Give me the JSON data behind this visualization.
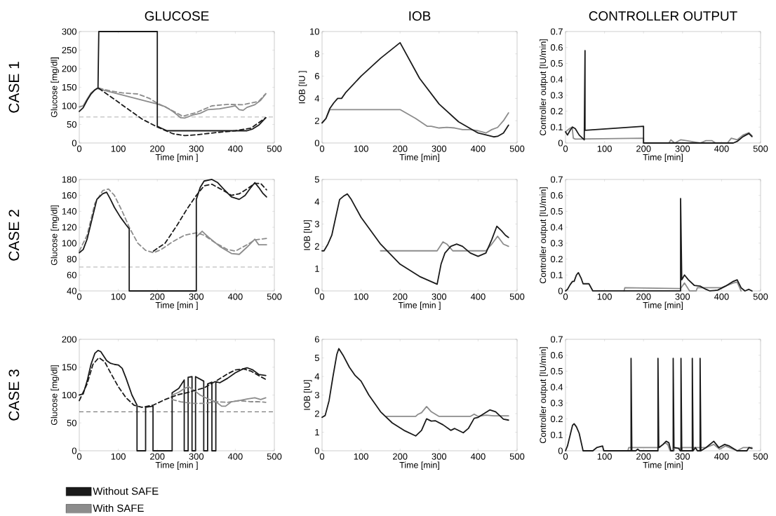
{
  "chart_data": [
    {
      "type": "line",
      "title": "GLUCOSE",
      "annotations": [
        "CASE 1"
      ],
      "xlabel": "Time [min ]",
      "ylabel": "Glucose [mg/dl]",
      "xlim": [
        0,
        500
      ],
      "xticks": [
        0,
        100,
        200,
        300,
        400,
        500
      ],
      "ylim": [
        0,
        300
      ],
      "yticks": [
        0,
        50,
        100,
        150,
        200,
        250,
        300
      ],
      "ref_lines": [
        {
          "axis": "y",
          "value": 70,
          "color": "#8c8c8c",
          "line_style": "dashed"
        }
      ],
      "series": [
        {
          "color": "#8c8c8c",
          "line_style": "solid",
          "x": [
            0,
            10,
            20,
            30,
            45,
            200,
            220,
            240,
            260,
            270,
            290,
            310,
            330,
            360,
            390,
            400,
            410,
            420,
            430,
            450,
            465,
            478
          ],
          "values": [
            97,
            100,
            118,
            135,
            147,
            105,
            98,
            85,
            68,
            67,
            75,
            80,
            90,
            92,
            98,
            100,
            90,
            88,
            96,
            103,
            115,
            132
          ]
        },
        {
          "color": "#8c8c8c",
          "line_style": "dashed",
          "x": [
            50,
            80,
            110,
            150,
            180,
            200,
            230,
            265,
            300,
            340,
            380,
            420,
            460,
            478
          ],
          "values": [
            148,
            140,
            135,
            132,
            120,
            107,
            92,
            72,
            82,
            100,
            104,
            103,
            112,
            133
          ]
        },
        {
          "color": "#1a1a1a",
          "line_style": "dashed",
          "x": [
            50,
            80,
            120,
            160,
            200,
            240,
            270,
            300,
            350,
            400,
            440,
            478
          ],
          "values": [
            147,
            125,
            95,
            65,
            43,
            25,
            20,
            22,
            28,
            33,
            40,
            68
          ]
        },
        {
          "color": "#1a1a1a",
          "line_style": "solid",
          "x": [
            0,
            10,
            20,
            30,
            40,
            48,
            50,
            200,
            200,
            210,
            225,
            300,
            400,
            430,
            445,
            460,
            478
          ],
          "values": [
            85,
            95,
            115,
            132,
            143,
            148,
            300,
            300,
            45,
            40,
            33,
            33,
            33,
            33,
            38,
            48,
            68
          ]
        }
      ]
    },
    {
      "type": "line",
      "title": "IOB",
      "xlabel": "Time [min]",
      "ylabel": "IOB [IU ]",
      "xlim": [
        0,
        500
      ],
      "xticks": [
        0,
        100,
        200,
        300,
        400,
        500
      ],
      "ylim": [
        0,
        10
      ],
      "yticks": [
        0,
        2,
        4,
        6,
        8,
        10
      ],
      "series": [
        {
          "color": "#8c8c8c",
          "line_style": "solid",
          "x": [
            0,
            10,
            20,
            200,
            240,
            270,
            280,
            300,
            320,
            340,
            360,
            380,
            400,
            420,
            435,
            450,
            465,
            478
          ],
          "values": [
            1.8,
            2.2,
            3,
            3,
            2.2,
            1.5,
            1.5,
            1.35,
            1.4,
            1.35,
            1.2,
            1.2,
            1.1,
            0.9,
            1.2,
            1.4,
            2,
            2.7
          ]
        },
        {
          "color": "#1a1a1a",
          "line_style": "solid",
          "x": [
            0,
            10,
            20,
            30,
            40,
            50,
            60,
            100,
            150,
            200,
            250,
            300,
            350,
            400,
            440,
            450,
            465,
            478
          ],
          "values": [
            1.8,
            2.2,
            3.1,
            3.6,
            4,
            4,
            4.5,
            6,
            7.6,
            9,
            5.8,
            3.5,
            1.9,
            0.9,
            0.55,
            0.6,
            0.9,
            1.6
          ]
        }
      ]
    },
    {
      "type": "line",
      "title": "CONTROLLER OUTPUT",
      "xlabel": "Time [min]",
      "ylabel": "Controller output [IU/min]",
      "xlim": [
        0,
        500
      ],
      "xticks": [
        0,
        100,
        200,
        300,
        400,
        500
      ],
      "ylim": [
        0,
        0.7
      ],
      "yticks": [
        0,
        0.1,
        0.2,
        0.3,
        0.4,
        0.5,
        0.6,
        0.7
      ],
      "series": [
        {
          "color": "#8c8c8c",
          "line_style": "solid",
          "x": [
            0,
            10,
            17,
            20,
            25,
            200,
            200,
            265,
            270,
            280,
            295,
            310,
            345,
            360,
            375,
            385,
            415,
            425,
            440,
            455,
            470,
            478
          ],
          "values": [
            0.07,
            0.09,
            0.1,
            0.03,
            0.025,
            0.03,
            0,
            0,
            0.02,
            0,
            0.02,
            0.015,
            0,
            0.015,
            0.015,
            0,
            0,
            0.03,
            0.02,
            0.05,
            0.065,
            0.045
          ]
        },
        {
          "color": "#1a1a1a",
          "line_style": "solid",
          "x": [
            0,
            5,
            12,
            18,
            25,
            35,
            48,
            50,
            50,
            200,
            200,
            430,
            440,
            455,
            470,
            478
          ],
          "values": [
            0.07,
            0.05,
            0.08,
            0.1,
            0.09,
            0.05,
            0.02,
            0.58,
            0.08,
            0.105,
            0,
            0,
            0.01,
            0.04,
            0.06,
            0.04
          ]
        }
      ]
    },
    {
      "type": "line",
      "annotations": [
        "CASE 2"
      ],
      "xlabel": "Time [min ]",
      "ylabel": "Glucose [mg/dl]",
      "xlim": [
        0,
        500
      ],
      "xticks": [
        0,
        100,
        200,
        300,
        400,
        500
      ],
      "ylim": [
        40,
        180
      ],
      "yticks": [
        40,
        60,
        80,
        100,
        120,
        140,
        160,
        180
      ],
      "ref_lines": [
        {
          "axis": "y",
          "value": 70,
          "color": "#8c8c8c",
          "line_style": "dashed"
        }
      ],
      "series": [
        {
          "color": "#8c8c8c",
          "line_style": "dashed",
          "x": [
            0,
            20,
            40,
            60,
            75,
            90,
            110,
            130,
            150,
            170,
            190,
            210,
            240,
            270,
            300,
            320,
            350,
            380,
            400,
            430,
            450,
            480
          ],
          "values": [
            90,
            110,
            150,
            166,
            168,
            160,
            140,
            118,
            100,
            91,
            88,
            92,
            102,
            110,
            113,
            110,
            100,
            92,
            90,
            98,
            104,
            106
          ]
        },
        {
          "color": "#8c8c8c",
          "line_style": "solid",
          "x": [
            300,
            315,
            330,
            360,
            390,
            410,
            430,
            450,
            460,
            480
          ],
          "values": [
            108,
            115,
            108,
            96,
            87,
            86,
            95,
            105,
            98,
            98
          ]
        },
        {
          "color": "#1a1a1a",
          "line_style": "dashed",
          "x": [
            190,
            220,
            250,
            275,
            300,
            320,
            340,
            370,
            390,
            410,
            430,
            450,
            465,
            480
          ],
          "values": [
            90,
            100,
            122,
            142,
            160,
            172,
            174,
            166,
            160,
            162,
            168,
            175,
            175,
            167
          ]
        },
        {
          "color": "#1a1a1a",
          "line_style": "solid",
          "x": [
            0,
            10,
            20,
            30,
            45,
            60,
            70,
            80,
            90,
            105,
            120,
            128,
            128,
            300,
            300,
            310,
            320,
            340,
            355,
            370,
            390,
            410,
            425,
            440,
            450,
            460,
            470,
            480
          ],
          "values": [
            88,
            92,
            105,
            125,
            155,
            162,
            164,
            155,
            145,
            133,
            123,
            118,
            40,
            40,
            155,
            170,
            178,
            180,
            176,
            168,
            158,
            155,
            160,
            170,
            176,
            170,
            163,
            158
          ]
        }
      ]
    },
    {
      "type": "line",
      "xlabel": "Time [min ]",
      "ylabel": "IOB [IU]",
      "xlim": [
        0,
        500
      ],
      "xticks": [
        0,
        100,
        200,
        300,
        400,
        500
      ],
      "ylim": [
        0,
        5
      ],
      "yticks": [
        0,
        1,
        2,
        3,
        4,
        5
      ],
      "series": [
        {
          "color": "#8c8c8c",
          "line_style": "solid",
          "x": [
            150,
            295,
            310,
            320,
            335,
            420,
            435,
            450,
            465,
            478
          ],
          "values": [
            1.8,
            1.8,
            2.2,
            2.1,
            1.8,
            1.8,
            2.1,
            2.45,
            2.1,
            2.0
          ]
        },
        {
          "color": "#1a1a1a",
          "line_style": "solid",
          "x": [
            0,
            5,
            15,
            25,
            35,
            45,
            55,
            65,
            75,
            100,
            150,
            200,
            250,
            295,
            305,
            315,
            330,
            345,
            360,
            380,
            400,
            420,
            435,
            448,
            460,
            470,
            478
          ],
          "values": [
            1.8,
            1.8,
            2.1,
            2.5,
            3.3,
            4.1,
            4.25,
            4.35,
            4.1,
            3.3,
            2.1,
            1.2,
            0.65,
            0.3,
            1.2,
            1.7,
            2,
            2.1,
            2,
            1.7,
            1.55,
            1.7,
            2.3,
            2.9,
            2.7,
            2.5,
            2.4
          ]
        }
      ]
    },
    {
      "type": "line",
      "xlabel": "Time [min]",
      "ylabel": "Controller output [IU/min]",
      "xlim": [
        0,
        500
      ],
      "xticks": [
        0,
        100,
        200,
        300,
        400,
        500
      ],
      "ylim": [
        0,
        0.7
      ],
      "yticks": [
        0,
        0.1,
        0.2,
        0.3,
        0.4,
        0.5,
        0.6,
        0.7
      ],
      "series": [
        {
          "color": "#8c8c8c",
          "line_style": "solid",
          "x": [
            150,
            152,
            295,
            305,
            318,
            335,
            338,
            400,
            430,
            440,
            450
          ],
          "values": [
            0,
            0.02,
            0.015,
            0.05,
            0,
            0,
            0.02,
            0.02,
            0.05,
            0.055,
            0
          ]
        },
        {
          "color": "#1a1a1a",
          "line_style": "solid",
          "x": [
            0,
            5,
            12,
            18,
            22,
            28,
            33,
            40,
            45,
            60,
            70,
            295,
            295,
            298,
            305,
            315,
            330,
            345,
            360,
            370,
            390,
            410,
            430,
            440,
            450,
            460,
            470,
            478
          ],
          "values": [
            0,
            0.01,
            0.04,
            0.06,
            0.06,
            0.1,
            0.115,
            0.08,
            0.045,
            0.045,
            0,
            0,
            0.58,
            0.07,
            0.1,
            0.07,
            0.035,
            0.03,
            0.01,
            0,
            0.005,
            0.03,
            0.06,
            0.07,
            0.02,
            0,
            0.01,
            0
          ]
        }
      ]
    },
    {
      "type": "line",
      "annotations": [
        "CASE 3"
      ],
      "xlabel": "Time [min ]",
      "ylabel": "Glucose [mg/dl]",
      "xlim": [
        0,
        500
      ],
      "xticks": [
        0,
        100,
        200,
        300,
        400,
        500
      ],
      "ylim": [
        0,
        200
      ],
      "yticks": [
        0,
        50,
        100,
        150,
        200
      ],
      "legend": "bottom",
      "ref_lines": [
        {
          "axis": "y",
          "value": 70,
          "color": "#1a1a1a",
          "line_style": "dashed"
        }
      ],
      "series": [
        {
          "name": "Without SAFE",
          "color": "#1a1a1a",
          "line_style": "solid",
          "x": [
            0,
            10,
            20,
            30,
            40,
            48,
            55,
            70,
            80,
            90,
            100,
            110,
            120,
            135,
            148,
            148,
            170,
            170,
            189,
            189,
            238,
            238,
            255,
            269,
            269,
            279,
            279,
            289,
            289,
            298,
            298,
            319,
            319,
            329,
            329,
            340,
            340,
            350,
            350,
            360,
            380,
            400,
            420,
            430,
            445,
            460,
            478
          ],
          "values": [
            100,
            102,
            125,
            155,
            175,
            180,
            178,
            162,
            157,
            155,
            154,
            148,
            130,
            100,
            82,
            0,
            0,
            78,
            80,
            0,
            0,
            104,
            112,
            127,
            0,
            0,
            132,
            133,
            0,
            0,
            133,
            125,
            0,
            0,
            120,
            123,
            0,
            0,
            124,
            122,
            130,
            140,
            147,
            149,
            145,
            137,
            135
          ]
        },
        {
          "name": "With SAFE",
          "color": "#8c8c8c",
          "line_style": "solid",
          "x": [
            238,
            255,
            270,
            280,
            295,
            310,
            330,
            350,
            365,
            375,
            390,
            410,
            430,
            450,
            465,
            478
          ],
          "values": [
            100,
            105,
            112,
            115,
            108,
            100,
            93,
            88,
            80,
            80,
            88,
            90,
            93,
            95,
            92,
            95
          ]
        },
        {
          "color": "#8c8c8c",
          "line_style": "dashed",
          "x": [
            238,
            260,
            290,
            320,
            350,
            380,
            410,
            440,
            460,
            478
          ],
          "values": [
            92,
            88,
            85,
            85,
            88,
            87,
            90,
            88,
            88,
            87
          ]
        },
        {
          "color": "#1a1a1a",
          "line_style": "dashed",
          "x": [
            0,
            20,
            35,
            50,
            65,
            80,
            100,
            120,
            140,
            160,
            190,
            220,
            250,
            280,
            320,
            350,
            380,
            400,
            420,
            440,
            460,
            478
          ],
          "values": [
            90,
            120,
            155,
            167,
            160,
            140,
            115,
            95,
            82,
            78,
            82,
            92,
            100,
            105,
            113,
            125,
            138,
            145,
            147,
            143,
            135,
            128
          ]
        }
      ]
    },
    {
      "type": "line",
      "xlabel": "Time [min]",
      "ylabel": "IOB [IU]",
      "xlim": [
        0,
        500
      ],
      "xticks": [
        0,
        100,
        200,
        300,
        400,
        500
      ],
      "ylim": [
        0,
        6
      ],
      "yticks": [
        0,
        1,
        2,
        3,
        4,
        5,
        6
      ],
      "series": [
        {
          "color": "#8c8c8c",
          "line_style": "solid",
          "x": [
            165,
            240,
            245,
            255,
            268,
            280,
            300,
            380,
            390,
            400,
            420,
            440,
            478
          ],
          "values": [
            1.85,
            1.85,
            1.95,
            2.05,
            2.38,
            2.1,
            1.85,
            1.85,
            1.97,
            1.85,
            1.92,
            1.88,
            1.88
          ]
        },
        {
          "color": "#1a1a1a",
          "line_style": "solid",
          "x": [
            0,
            8,
            18,
            28,
            38,
            43,
            55,
            70,
            85,
            100,
            120,
            150,
            180,
            210,
            240,
            255,
            268,
            280,
            290,
            310,
            330,
            340,
            362,
            375,
            390,
            400,
            415,
            430,
            445,
            465,
            478
          ],
          "values": [
            1.8,
            1.9,
            2.7,
            4,
            5.2,
            5.5,
            5.1,
            4.5,
            4.05,
            3.75,
            3,
            2.1,
            1.5,
            1.1,
            0.8,
            1.1,
            1.72,
            1.6,
            1.62,
            1.4,
            1.1,
            1.2,
            0.97,
            1.2,
            1.75,
            1.8,
            2.0,
            2.2,
            2.1,
            1.7,
            1.65
          ]
        }
      ]
    },
    {
      "type": "line",
      "xlabel": "Time [min]",
      "ylabel": "Controller output [IU/min]",
      "xlim": [
        0,
        500
      ],
      "xticks": [
        0,
        100,
        200,
        300,
        400,
        500
      ],
      "ylim": [
        0,
        0.7
      ],
      "yticks": [
        0,
        0.1,
        0.2,
        0.3,
        0.4,
        0.5,
        0.6,
        0.7
      ],
      "series": [
        {
          "color": "#8c8c8c",
          "line_style": "solid",
          "x": [
            160,
            162,
            240,
            255,
            262,
            268,
            278,
            280,
            298,
            300,
            360,
            380,
            395,
            410,
            440,
            455,
            478
          ],
          "values": [
            0,
            0.02,
            0.02,
            0.05,
            0.04,
            0,
            0,
            0.02,
            0.015,
            0.02,
            0.02,
            0.04,
            0.01,
            0.03,
            0,
            0.02,
            0.02
          ]
        },
        {
          "color": "#1a1a1a",
          "line_style": "solid",
          "x": [
            0,
            5,
            12,
            18,
            22,
            28,
            35,
            45,
            70,
            80,
            95,
            98,
            168,
            168,
            170,
            180,
            185,
            190,
            237,
            237,
            239,
            250,
            258,
            265,
            270,
            276,
            276,
            278,
            290,
            294,
            296,
            296,
            298,
            325,
            325,
            327,
            333,
            338,
            345,
            345,
            347,
            360,
            380,
            393,
            408,
            420,
            440,
            465,
            470,
            478
          ],
          "values": [
            0,
            0.03,
            0.1,
            0.16,
            0.17,
            0.15,
            0.11,
            0,
            0,
            0.02,
            0.03,
            0,
            0,
            0.58,
            0,
            0,
            0.01,
            0,
            0,
            0.58,
            0.02,
            0.04,
            0.06,
            0.05,
            0,
            0,
            0.58,
            0.02,
            0.015,
            0,
            0,
            0.58,
            0,
            0,
            0.58,
            0,
            0.02,
            0,
            0,
            0.58,
            0,
            0.02,
            0.06,
            0.02,
            0.04,
            0.03,
            0,
            0,
            0.02,
            0.015
          ]
        }
      ]
    }
  ]
}
